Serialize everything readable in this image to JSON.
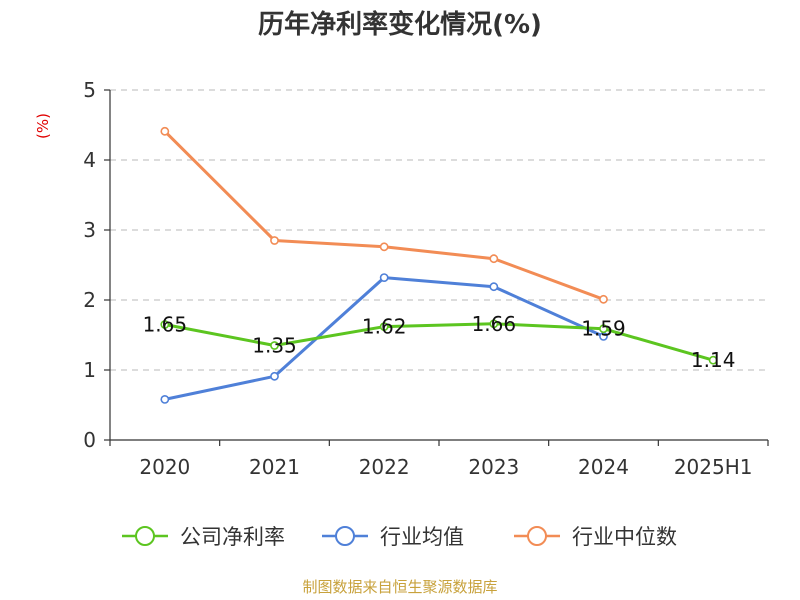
{
  "chart_data": {
    "type": "line",
    "title": "历年净利率变化情况(%)",
    "ylabel": "(%)",
    "xlabel": "",
    "categories": [
      "2020",
      "2021",
      "2022",
      "2023",
      "2024",
      "2025H1"
    ],
    "ylim": [
      0,
      5
    ],
    "yticks": [
      "0",
      "1",
      "2",
      "3",
      "4",
      "5"
    ],
    "grid": true,
    "legend_position": "bottom",
    "series": [
      {
        "name": "公司净利率",
        "color": "#5cc520",
        "values": [
          1.65,
          1.35,
          1.62,
          1.66,
          1.59,
          1.14
        ],
        "labels": [
          "1.65",
          "1.35",
          "1.62",
          "1.66",
          "1.59",
          "1.14"
        ]
      },
      {
        "name": "行业均值",
        "color": "#4f80d8",
        "values": [
          0.58,
          0.91,
          2.32,
          2.19,
          1.48,
          null
        ]
      },
      {
        "name": "行业中位数",
        "color": "#f28c55",
        "values": [
          4.41,
          2.85,
          2.76,
          2.59,
          2.01,
          null
        ]
      }
    ]
  },
  "source": "制图数据来自恒生聚源数据库"
}
